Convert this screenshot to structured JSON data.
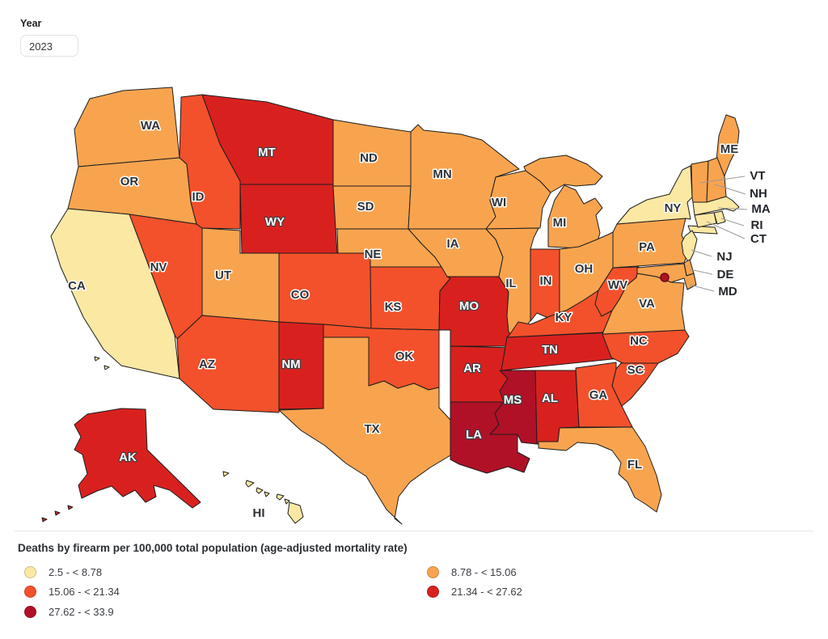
{
  "controls": {
    "year_label": "Year",
    "year_value": "2023"
  },
  "legend": {
    "title": "Deaths by firearm per 100,000 total population (age-adjusted mortality rate)",
    "items": [
      {
        "label": "2.5 - < 8.78",
        "color": "#FBE8A3"
      },
      {
        "label": "8.78 - < 15.06",
        "color": "#F8A44F"
      },
      {
        "label": "15.06 - < 21.34",
        "color": "#F2512B"
      },
      {
        "label": "21.34 - < 27.62",
        "color": "#D8211F"
      },
      {
        "label": "27.62 - < 33.9",
        "color": "#B01127"
      }
    ]
  },
  "map": {
    "border_color": "#1d1d1d",
    "states": [
      {
        "abbr": "WA",
        "category": 1
      },
      {
        "abbr": "OR",
        "category": 1
      },
      {
        "abbr": "CA",
        "category": 0
      },
      {
        "abbr": "NV",
        "category": 2
      },
      {
        "abbr": "ID",
        "category": 2
      },
      {
        "abbr": "MT",
        "category": 3
      },
      {
        "abbr": "WY",
        "category": 3
      },
      {
        "abbr": "UT",
        "category": 1
      },
      {
        "abbr": "CO",
        "category": 2
      },
      {
        "abbr": "AZ",
        "category": 2
      },
      {
        "abbr": "NM",
        "category": 3
      },
      {
        "abbr": "ND",
        "category": 1
      },
      {
        "abbr": "SD",
        "category": 1
      },
      {
        "abbr": "NE",
        "category": 1
      },
      {
        "abbr": "KS",
        "category": 2
      },
      {
        "abbr": "OK",
        "category": 2
      },
      {
        "abbr": "TX",
        "category": 1
      },
      {
        "abbr": "MN",
        "category": 1
      },
      {
        "abbr": "IA",
        "category": 1
      },
      {
        "abbr": "MO",
        "category": 3
      },
      {
        "abbr": "AR",
        "category": 3
      },
      {
        "abbr": "LA",
        "category": 4
      },
      {
        "abbr": "WI",
        "category": 1
      },
      {
        "abbr": "IL",
        "category": 1
      },
      {
        "abbr": "MS",
        "category": 4
      },
      {
        "abbr": "MI",
        "category": 1
      },
      {
        "abbr": "IN",
        "category": 2
      },
      {
        "abbr": "KY",
        "category": 2
      },
      {
        "abbr": "TN",
        "category": 3
      },
      {
        "abbr": "AL",
        "category": 3
      },
      {
        "abbr": "OH",
        "category": 1
      },
      {
        "abbr": "GA",
        "category": 2
      },
      {
        "abbr": "FL",
        "category": 1
      },
      {
        "abbr": "SC",
        "category": 2
      },
      {
        "abbr": "NC",
        "category": 2
      },
      {
        "abbr": "VA",
        "category": 1
      },
      {
        "abbr": "WV",
        "category": 2
      },
      {
        "abbr": "PA",
        "category": 1
      },
      {
        "abbr": "NY",
        "category": 0
      },
      {
        "abbr": "ME",
        "category": 1
      },
      {
        "abbr": "VT",
        "category": 1
      },
      {
        "abbr": "NH",
        "category": 1
      },
      {
        "abbr": "MA",
        "category": 0
      },
      {
        "abbr": "RI",
        "category": 0
      },
      {
        "abbr": "CT",
        "category": 0
      },
      {
        "abbr": "NJ",
        "category": 0
      },
      {
        "abbr": "DE",
        "category": 1
      },
      {
        "abbr": "MD",
        "category": 1
      },
      {
        "abbr": "AK",
        "category": 3
      },
      {
        "abbr": "HI",
        "category": 0
      },
      {
        "abbr": "DC",
        "category": 4
      }
    ]
  }
}
